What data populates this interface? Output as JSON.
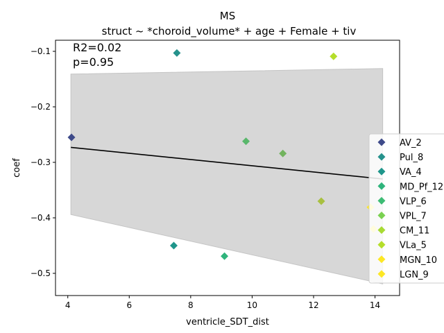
{
  "chart_data": {
    "type": "scatter",
    "title": "MS",
    "subtitle": "struct ~ *choroid_volume* + age + Female + tiv",
    "xlabel": "ventricle_SDT_dist",
    "ylabel": "coef",
    "xlim": [
      3.6,
      14.8
    ],
    "ylim": [
      -0.54,
      -0.08
    ],
    "xticks": [
      4,
      6,
      8,
      10,
      12,
      14
    ],
    "yticks": [
      -0.1,
      -0.2,
      -0.3,
      -0.4,
      -0.5
    ],
    "xtick_labels": [
      "4",
      "6",
      "8",
      "10",
      "12",
      "14"
    ],
    "ytick_labels": [
      "−0.1",
      "−0.2",
      "−0.3",
      "−0.4",
      "−0.5"
    ],
    "annotations": [
      "R2=0.02",
      "p=0.95"
    ],
    "legend_position": "right",
    "marker": "diamond",
    "points": [
      {
        "label": "AV_2",
        "x": 4.12,
        "y": -0.255,
        "color": "#3e4a89"
      },
      {
        "label": "Pul_8",
        "x": 7.55,
        "y": -0.103,
        "color": "#26928c"
      },
      {
        "label": "VA_4",
        "x": 7.45,
        "y": -0.45,
        "color": "#1f968b"
      },
      {
        "label": "MD_Pf_12",
        "x": 9.1,
        "y": -0.469,
        "color": "#2fb47c"
      },
      {
        "label": "VLP_6",
        "x": 9.8,
        "y": -0.262,
        "color": "#59b76b"
      },
      {
        "label": "VPL_7",
        "x": 11.0,
        "y": -0.284,
        "color": "#72b35e"
      },
      {
        "label": "CM_11",
        "x": 12.25,
        "y": -0.37,
        "color": "#a8c040"
      },
      {
        "label": "VLa_5",
        "x": 12.65,
        "y": -0.109,
        "color": "#b5de2b"
      },
      {
        "label": "MGN_10",
        "x": 13.85,
        "y": -0.381,
        "color": "#fde725"
      },
      {
        "label": "LGN_9",
        "x": 13.95,
        "y": -0.42,
        "color": "#fde725"
      }
    ],
    "regression": {
      "x": [
        4.1,
        14.25
      ],
      "y": [
        -0.273,
        -0.33
      ],
      "color": "#000000"
    },
    "confidence_band": {
      "x": [
        4.1,
        14.25
      ],
      "upper": [
        -0.141,
        -0.131
      ],
      "lower": [
        -0.394,
        -0.519
      ],
      "color": "#d3d3d3"
    },
    "legend": [
      {
        "label": "AV_2",
        "color": "#3e4a89"
      },
      {
        "label": "Pul_8",
        "color": "#26928c"
      },
      {
        "label": "VA_4",
        "color": "#1f968b"
      },
      {
        "label": "MD_Pf_12",
        "color": "#2fb47c"
      },
      {
        "label": "VLP_6",
        "color": "#3dbc74"
      },
      {
        "label": "VPL_7",
        "color": "#7ad151"
      },
      {
        "label": "CM_11",
        "color": "#a8db34"
      },
      {
        "label": "VLa_5",
        "color": "#b5de2b"
      },
      {
        "label": "MGN_10",
        "color": "#fde725"
      },
      {
        "label": "LGN_9",
        "color": "#fde725"
      }
    ]
  }
}
